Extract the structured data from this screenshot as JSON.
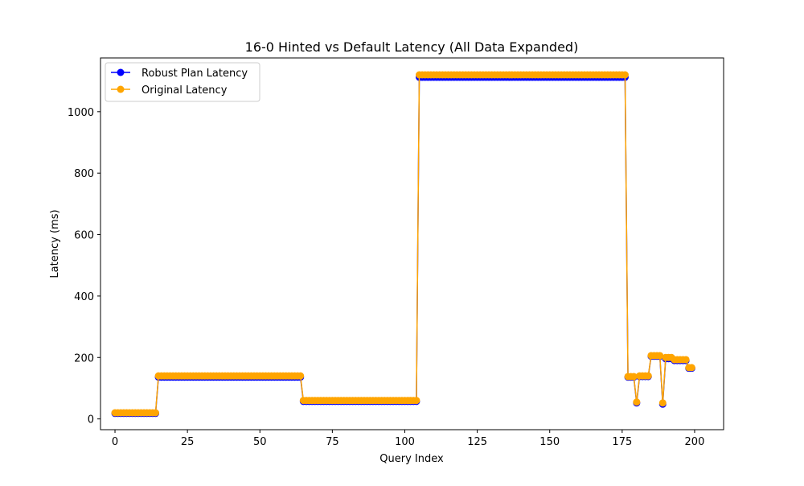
{
  "chart_data": {
    "type": "line",
    "title": "16-0 Hinted vs Default Latency (All Data Expanded)",
    "xlabel": "Query Index",
    "ylabel": "Latency (ms)",
    "xlim": [
      -5,
      210
    ],
    "ylim": [
      -35,
      1175
    ],
    "x_ticks": [
      0,
      25,
      50,
      75,
      100,
      125,
      150,
      175,
      200
    ],
    "y_ticks": [
      0,
      200,
      400,
      600,
      800,
      1000
    ],
    "grid": false,
    "legend_position": "top-left",
    "series": [
      {
        "name": "Robust Plan Latency",
        "color": "#0000ff",
        "segments": [
          {
            "start": 0,
            "end": 14,
            "value": 18
          },
          {
            "start": 15,
            "end": 64,
            "value": 136
          },
          {
            "start": 65,
            "end": 104,
            "value": 57
          },
          {
            "start": 105,
            "end": 176,
            "value": 1112
          },
          {
            "start": 177,
            "end": 179,
            "value": 136
          },
          {
            "start": 180,
            "end": 180,
            "value": 52
          },
          {
            "start": 181,
            "end": 184,
            "value": 138
          },
          {
            "start": 185,
            "end": 188,
            "value": 204
          },
          {
            "start": 189,
            "end": 189,
            "value": 48
          },
          {
            "start": 190,
            "end": 192,
            "value": 196
          },
          {
            "start": 193,
            "end": 197,
            "value": 190
          },
          {
            "start": 198,
            "end": 199,
            "value": 165
          }
        ]
      },
      {
        "name": "Original Latency",
        "color": "#ffa500",
        "segments": [
          {
            "start": 0,
            "end": 14,
            "value": 20
          },
          {
            "start": 15,
            "end": 64,
            "value": 140
          },
          {
            "start": 65,
            "end": 104,
            "value": 60
          },
          {
            "start": 105,
            "end": 176,
            "value": 1120
          },
          {
            "start": 177,
            "end": 179,
            "value": 138
          },
          {
            "start": 180,
            "end": 180,
            "value": 55
          },
          {
            "start": 181,
            "end": 184,
            "value": 140
          },
          {
            "start": 185,
            "end": 188,
            "value": 206
          },
          {
            "start": 189,
            "end": 189,
            "value": 52
          },
          {
            "start": 190,
            "end": 192,
            "value": 200
          },
          {
            "start": 193,
            "end": 197,
            "value": 193
          },
          {
            "start": 198,
            "end": 199,
            "value": 167
          }
        ]
      }
    ]
  }
}
